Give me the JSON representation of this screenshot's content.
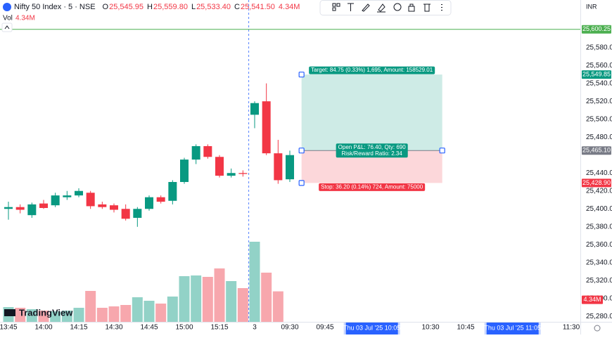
{
  "header": {
    "symbol": "Nifty 50 Index · 5 · NSE",
    "ohlc": [
      {
        "key": "O",
        "value": "25,545.95"
      },
      {
        "key": "H",
        "value": "25,559.80"
      },
      {
        "key": "L",
        "value": "25,533.40"
      },
      {
        "key": "C",
        "value": "25,541.50"
      }
    ],
    "change": "4.34M",
    "volume_key": "Vol",
    "volume_value": "4.34M",
    "currency": "INR",
    "logo": "TradingView"
  },
  "chart_data": {
    "type": "candlestick",
    "up_color": "#089981",
    "down_color": "#f23645",
    "volume_up_color": "#92d2c7",
    "volume_down_color": "#f7a7ad",
    "grid": false,
    "ylim": [
      25274,
      25633
    ],
    "yticks": [
      {
        "value": 25580,
        "label": "25,580.00"
      },
      {
        "value": 25560,
        "label": "25,560.00"
      },
      {
        "value": 25540,
        "label": "25,540.00"
      },
      {
        "value": 25520,
        "label": "25,520.00"
      },
      {
        "value": 25500,
        "label": "25,500.00"
      },
      {
        "value": 25480,
        "label": "25,480.00"
      },
      {
        "value": 25440,
        "label": "25,440.00"
      },
      {
        "value": 25420,
        "label": "25,420.00"
      },
      {
        "value": 25400,
        "label": "25,400.00"
      },
      {
        "value": 25380,
        "label": "25,380.00"
      },
      {
        "value": 25360,
        "label": "25,360.00"
      },
      {
        "value": 25340,
        "label": "25,340.00"
      },
      {
        "value": 25320,
        "label": "25,320.00"
      },
      {
        "value": 25300,
        "label": "25,300.00"
      },
      {
        "value": 25280,
        "label": "25,280.00"
      }
    ],
    "xticks": [
      {
        "value": 0,
        "label": "13:45"
      },
      {
        "value": 3,
        "label": "14:00"
      },
      {
        "value": 6,
        "label": "14:15"
      },
      {
        "value": 9,
        "label": "14:30"
      },
      {
        "value": 12,
        "label": "14:45"
      },
      {
        "value": 15,
        "label": "15:00"
      },
      {
        "value": 18,
        "label": "15:15"
      },
      {
        "value": 21,
        "label": "3"
      },
      {
        "value": 24,
        "label": "09:30"
      },
      {
        "value": 27,
        "label": "09:45"
      },
      {
        "value": 36,
        "label": "10:30"
      },
      {
        "value": 39,
        "label": "10:45"
      },
      {
        "value": 48,
        "label": "11:30"
      }
    ],
    "date_tags": [
      {
        "value": 31,
        "label": "Thu 03 Jul '25  10:05"
      },
      {
        "value": 43,
        "label": "Thu 03 Jul '25  11:05"
      }
    ],
    "candles": [
      {
        "o": 25400,
        "h": 25408,
        "l": 25388,
        "c": 25402
      },
      {
        "o": 25402,
        "h": 25405,
        "l": 25395,
        "c": 25399
      },
      {
        "o": 25393,
        "h": 25407,
        "l": 25390,
        "c": 25405
      },
      {
        "o": 25406,
        "h": 25410,
        "l": 25400,
        "c": 25401
      },
      {
        "o": 25404,
        "h": 25418,
        "l": 25402,
        "c": 25415
      },
      {
        "o": 25413,
        "h": 25420,
        "l": 25410,
        "c": 25415
      },
      {
        "o": 25415,
        "h": 25423,
        "l": 25413,
        "c": 25420
      },
      {
        "o": 25418,
        "h": 25420,
        "l": 25400,
        "c": 25403
      },
      {
        "o": 25405,
        "h": 25408,
        "l": 25400,
        "c": 25402
      },
      {
        "o": 25404,
        "h": 25406,
        "l": 25396,
        "c": 25399
      },
      {
        "o": 25400,
        "h": 25405,
        "l": 25387,
        "c": 25389
      },
      {
        "o": 25390,
        "h": 25402,
        "l": 25380,
        "c": 25400
      },
      {
        "o": 25400,
        "h": 25415,
        "l": 25398,
        "c": 25413
      },
      {
        "o": 25413,
        "h": 25415,
        "l": 25406,
        "c": 25408
      },
      {
        "o": 25409,
        "h": 25432,
        "l": 25405,
        "c": 25430
      },
      {
        "o": 25430,
        "h": 25457,
        "l": 25428,
        "c": 25455
      },
      {
        "o": 25455,
        "h": 25472,
        "l": 25450,
        "c": 25470
      },
      {
        "o": 25470,
        "h": 25472,
        "l": 25456,
        "c": 25458
      },
      {
        "o": 25458,
        "h": 25460,
        "l": 25435,
        "c": 25437
      },
      {
        "o": 25437,
        "h": 25445,
        "l": 25435,
        "c": 25440
      },
      {
        "o": 25440,
        "h": 25443,
        "l": 25436,
        "c": 25439
      },
      {
        "o": 25505,
        "h": 25520,
        "l": 25490,
        "c": 25518
      },
      {
        "o": 25520,
        "h": 25540,
        "l": 25460,
        "c": 25462
      },
      {
        "o": 25462,
        "h": 25477,
        "l": 25428,
        "c": 25432
      },
      {
        "o": 25433,
        "h": 25465,
        "l": 25430,
        "c": 25460
      }
    ],
    "volumes": [
      2.1,
      2.0,
      1.8,
      1.6,
      1.5,
      1.6,
      2.0,
      4.4,
      2.0,
      2.2,
      2.4,
      3.5,
      3.0,
      2.6,
      3.6,
      6.5,
      6.6,
      6.4,
      7.6,
      5.8,
      4.8,
      11.4,
      7.0,
      4.34,
      null
    ],
    "volume_tag": {
      "label": "4.34M",
      "color": "#f23645"
    },
    "price_lines": [
      {
        "value": 25600.25,
        "label": "25,600.25",
        "color": "#4caf50",
        "line": true
      },
      {
        "value": 25549.85,
        "label": "25,549.85",
        "color": "#089981",
        "line": false
      },
      {
        "value": 25465.1,
        "label": "25,465.10",
        "color": "#787b86",
        "line": false
      },
      {
        "value": 25428.9,
        "label": "25,428.90",
        "color": "#f23645",
        "line": false
      }
    ],
    "position": {
      "start": 25,
      "end": 37,
      "target": 25549.85,
      "entry": 25465.1,
      "stop": 25428.9,
      "target_text": "Target: 84.75 (0.33%) 1,695, Amount: 158529.01",
      "pnl_text": "Open P&L: 76.40, Qty: 690",
      "rr_text": "Risk/Reward Ratio: 2.34",
      "stop_text": "Stop: 36.20 (0.14%) 724, Amount: 75000"
    }
  }
}
